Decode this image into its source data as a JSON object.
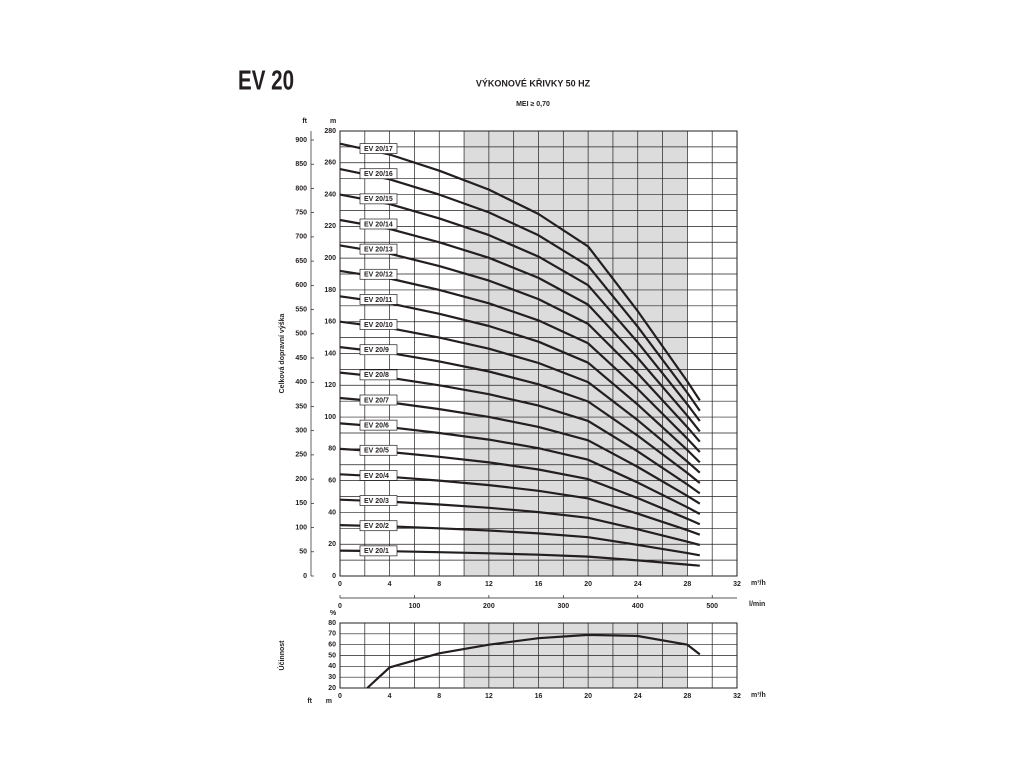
{
  "header": {
    "title": "EV 20",
    "subtitle": "VÝKONOVÉ KŘIVKY 50 HZ",
    "note": "MEI ≥ 0,70",
    "footer_ft": "ft",
    "footer_m": "m"
  },
  "chart_data": [
    {
      "type": "line",
      "y_label": "Celková dopravní výška",
      "y_unit": "m",
      "y2_unit": "ft",
      "x_unit": "m³/h",
      "x2_unit": "l/min",
      "x": [
        0,
        4,
        8,
        12,
        16,
        20,
        24,
        28,
        29
      ],
      "xlim": [
        0,
        32
      ],
      "xticks": [
        0,
        4,
        8,
        12,
        16,
        20,
        24,
        28,
        32
      ],
      "x2lim": [
        0,
        533.3
      ],
      "x2ticks": [
        0,
        100,
        200,
        300,
        400,
        500
      ],
      "ylim": [
        0,
        280
      ],
      "yticks": [
        0,
        20,
        40,
        60,
        80,
        100,
        120,
        140,
        160,
        180,
        200,
        220,
        240,
        260,
        280
      ],
      "y2lim": [
        0,
        918.6
      ],
      "y2ticks": [
        0,
        50,
        100,
        150,
        200,
        250,
        300,
        350,
        400,
        450,
        500,
        550,
        600,
        650,
        700,
        750,
        800,
        850,
        900
      ],
      "shaded_range": [
        10,
        28
      ],
      "grid": true,
      "color": "#231f20",
      "series": [
        {
          "name": "EV 20/1",
          "values": [
            16,
            15.6,
            15,
            14.3,
            13.4,
            12.2,
            9.8,
            7.2,
            6.5
          ]
        },
        {
          "name": "EV 20/2",
          "values": [
            32,
            31.2,
            30,
            28.6,
            26.8,
            24.4,
            19.6,
            14.4,
            13
          ]
        },
        {
          "name": "EV 20/3",
          "values": [
            48,
            46.8,
            45,
            42.9,
            40.2,
            36.6,
            29.4,
            21.6,
            19.5
          ]
        },
        {
          "name": "EV 20/4",
          "values": [
            64,
            62.4,
            60,
            57.2,
            53.6,
            48.8,
            39.2,
            28.8,
            26
          ]
        },
        {
          "name": "EV 20/5",
          "values": [
            80,
            78,
            75,
            71.5,
            67,
            61,
            49,
            36,
            32.5
          ]
        },
        {
          "name": "EV 20/6",
          "values": [
            96,
            93.6,
            90,
            85.8,
            80.4,
            73.2,
            58.8,
            43.2,
            39
          ]
        },
        {
          "name": "EV 20/7",
          "values": [
            112,
            109.2,
            105,
            100.1,
            93.8,
            85.4,
            68.6,
            50.4,
            45.5
          ]
        },
        {
          "name": "EV 20/8",
          "values": [
            128,
            124.8,
            120,
            114.4,
            107.2,
            97.6,
            78.4,
            57.6,
            52
          ]
        },
        {
          "name": "EV 20/9",
          "values": [
            144,
            140.4,
            135,
            128.7,
            120.6,
            109.8,
            88.2,
            64.8,
            58.5
          ]
        },
        {
          "name": "EV 20/10",
          "values": [
            160,
            156,
            150,
            143,
            134,
            122,
            98,
            72,
            65
          ]
        },
        {
          "name": "EV 20/11",
          "values": [
            176,
            171.6,
            165,
            157.3,
            147.4,
            134.2,
            107.8,
            79.2,
            71.5
          ]
        },
        {
          "name": "EV 20/12",
          "values": [
            192,
            187.2,
            180,
            171.6,
            160.8,
            146.4,
            117.6,
            86.4,
            78
          ]
        },
        {
          "name": "EV 20/13",
          "values": [
            208,
            202.8,
            195,
            185.9,
            174.2,
            158.6,
            127.4,
            93.6,
            84.5
          ]
        },
        {
          "name": "EV 20/14",
          "values": [
            224,
            218.4,
            210,
            200.2,
            187.6,
            170.8,
            137.2,
            100.8,
            91
          ]
        },
        {
          "name": "EV 20/15",
          "values": [
            240,
            234,
            225,
            214.5,
            201,
            183,
            147,
            108,
            97.5
          ]
        },
        {
          "name": "EV 20/16",
          "values": [
            256,
            249.6,
            240,
            228.8,
            214.4,
            195.2,
            156.8,
            115.2,
            104
          ]
        },
        {
          "name": "EV 20/17",
          "values": [
            272,
            265.2,
            255,
            243.1,
            227.8,
            207.4,
            166.6,
            122.4,
            110.5
          ]
        }
      ]
    },
    {
      "type": "line",
      "y_label": "Účinnost",
      "y_unit": "%",
      "x_unit": "m³/h",
      "x": [
        2.2,
        4,
        8,
        12,
        16,
        20,
        24,
        28,
        29
      ],
      "xlim": [
        0,
        32
      ],
      "xticks": [
        0,
        4,
        8,
        12,
        16,
        20,
        24,
        28,
        32
      ],
      "ylim": [
        20,
        80
      ],
      "yticks": [
        20,
        30,
        40,
        50,
        60,
        70,
        80
      ],
      "shaded_range": [
        10,
        28
      ],
      "grid": true,
      "color": "#231f20",
      "series": [
        {
          "values": [
            20,
            39,
            52,
            60,
            66,
            69,
            68,
            60,
            51
          ]
        }
      ]
    }
  ]
}
